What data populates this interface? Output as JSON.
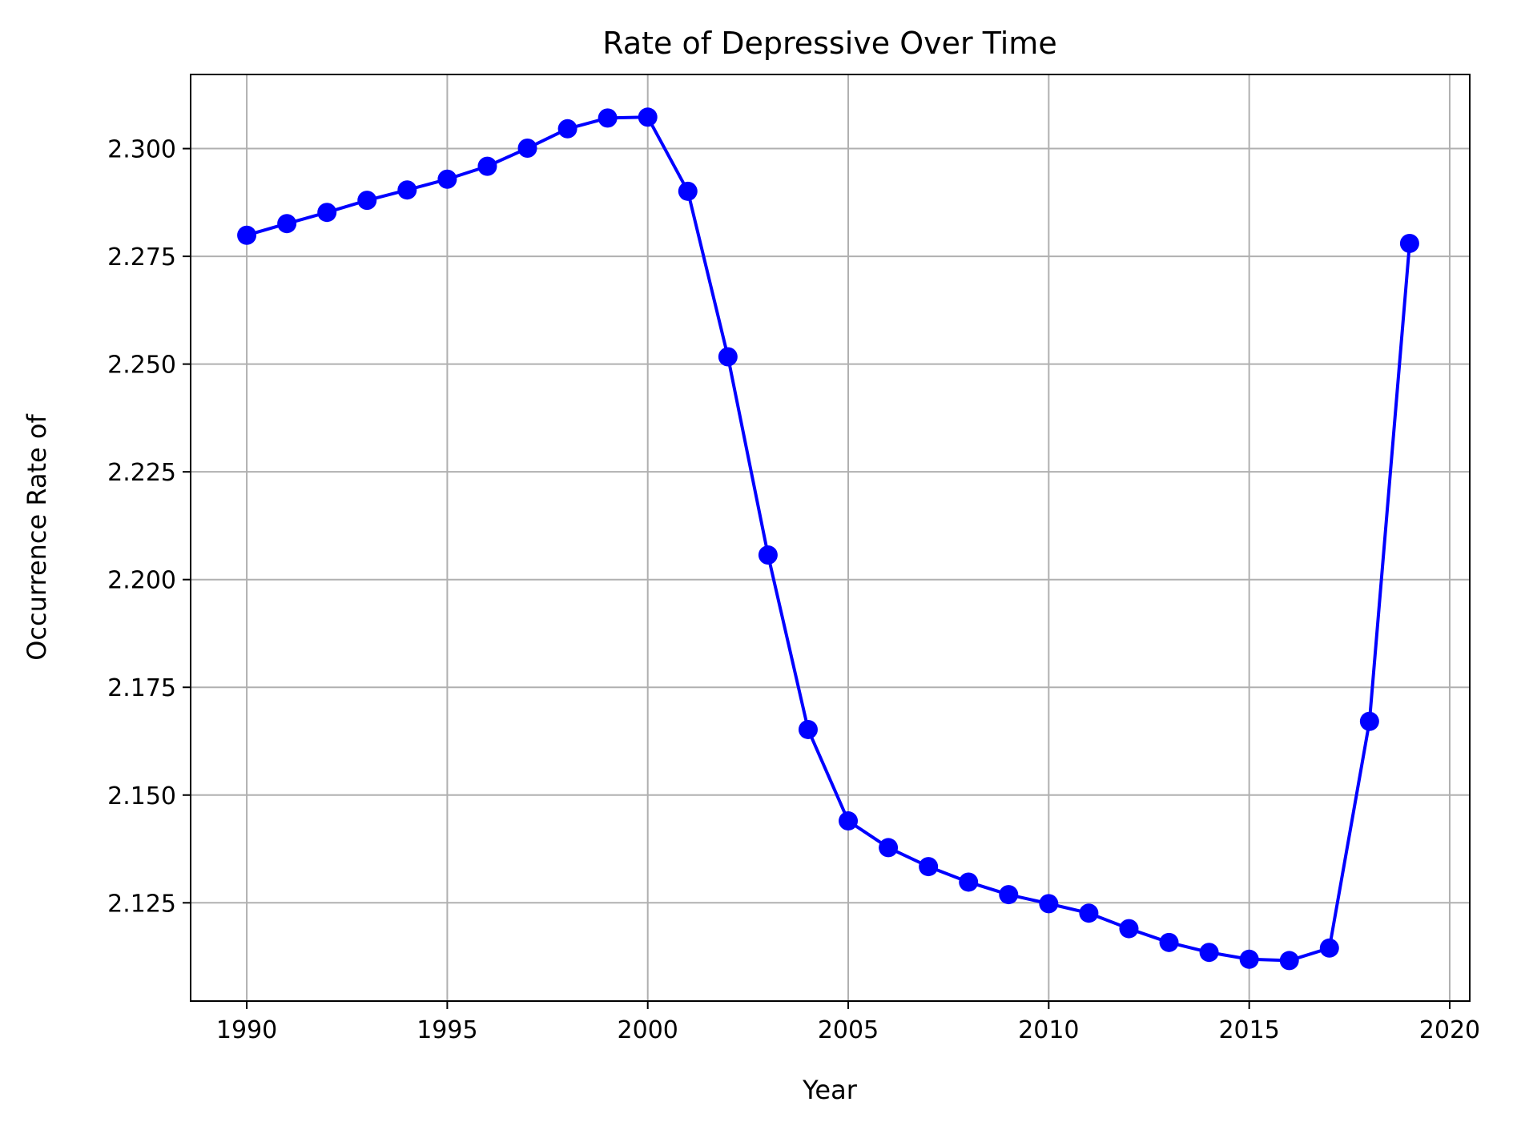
{
  "chart_data": {
    "type": "line",
    "title": "Rate of Depressive Over Time",
    "xlabel": "Year",
    "ylabel": "Occurrence Rate of",
    "xlim": [
      1988.6,
      2020.5
    ],
    "ylim": [
      2.1022,
      2.3172
    ],
    "x_ticks": [
      1990,
      1995,
      2000,
      2005,
      2010,
      2015,
      2020
    ],
    "y_ticks": [
      2.125,
      2.15,
      2.175,
      2.2,
      2.225,
      2.25,
      2.275,
      2.3
    ],
    "grid": true,
    "line_color": "#0000ff",
    "series": [
      {
        "x": [
          1990,
          1991,
          1992,
          1993,
          1994,
          1995,
          1996,
          1997,
          1998,
          1999,
          2000,
          2001,
          2002,
          2003,
          2004,
          2005,
          2006,
          2007,
          2008,
          2009,
          2010,
          2011,
          2012,
          2013,
          2014,
          2015,
          2016,
          2017,
          2018,
          2019
        ],
        "values": [
          2.2799,
          2.2826,
          2.2852,
          2.288,
          2.2904,
          2.2929,
          2.2959,
          2.3001,
          2.3046,
          2.3071,
          2.3073,
          2.2901,
          2.2517,
          2.2057,
          2.1652,
          2.144,
          2.1378,
          2.1334,
          2.1298,
          2.1269,
          2.1248,
          2.1226,
          2.119,
          2.1158,
          2.1135,
          2.1119,
          2.1116,
          2.1145,
          2.1671,
          2.278
        ]
      }
    ]
  }
}
